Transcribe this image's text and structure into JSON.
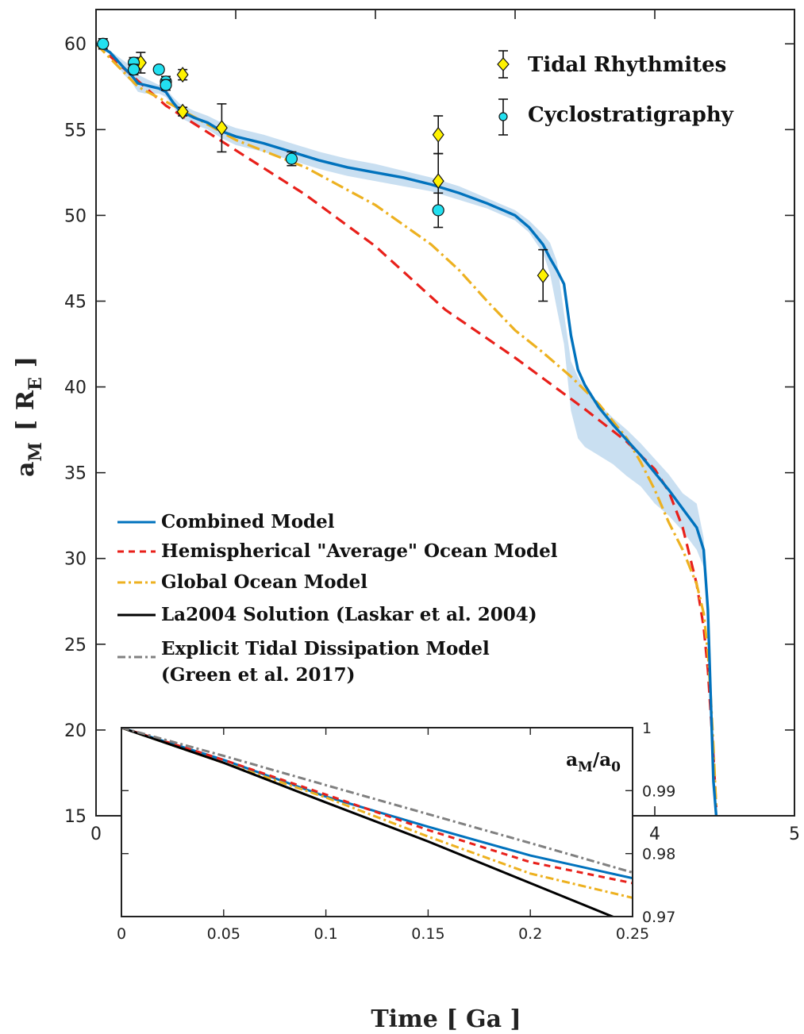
{
  "chart_data": [
    {
      "type": "line",
      "xlabel": "Time [ Ga ]",
      "ylabel_main": "a",
      "ylabel_sub": "M",
      "ylabel_bracket_open": "[",
      "ylabel_unit_main": "R",
      "ylabel_unit_sub": "E",
      "ylabel_bracket_close": "]",
      "xlim": [
        0,
        5
      ],
      "ylim": [
        15,
        62
      ],
      "xticks": [
        "0",
        "1",
        "2",
        "3",
        "4",
        "5"
      ],
      "yticks": [
        "15",
        "20",
        "25",
        "30",
        "35",
        "40",
        "45",
        "50",
        "55",
        "60"
      ],
      "legend_lines": [
        {
          "label": "Combined Model",
          "color": "#0072BD",
          "style": "solid"
        },
        {
          "label": "Hemispherical \"Average\" Ocean Model",
          "color": "#E8201A",
          "style": "dashed"
        },
        {
          "label": "Global Ocean Model",
          "color": "#EDB120",
          "style": "dashdot"
        },
        {
          "label": "La2004 Solution (Laskar et al. 2004)",
          "color": "#000000",
          "style": "solid"
        },
        {
          "label": "Explicit Tidal Dissipation Model",
          "label2": "(Green et al. 2017)",
          "color": "#808080",
          "style": "dashdot"
        }
      ],
      "legend_markers": [
        {
          "label": "Tidal Rhythmites",
          "marker": "diamond",
          "color": "#FFF200"
        },
        {
          "label": "Cyclostratigraphy",
          "marker": "circle",
          "color": "#22E0F0"
        }
      ],
      "series": [
        {
          "name": "Combined Model",
          "x": [
            0,
            0.1,
            0.2,
            0.25,
            0.3,
            0.35,
            0.4,
            0.45,
            0.5,
            0.55,
            0.6,
            0.7,
            0.8,
            0.9,
            1.0,
            1.2,
            1.4,
            1.6,
            1.8,
            2.0,
            2.2,
            2.4,
            2.6,
            2.8,
            3.0,
            3.1,
            3.2,
            3.25,
            3.3,
            3.35,
            3.4,
            3.45,
            3.5,
            3.6,
            3.7,
            3.8,
            3.9,
            4.0,
            4.1,
            4.2,
            4.3,
            4.35,
            4.38,
            4.4,
            4.42,
            4.44
          ],
          "y": [
            60,
            59.5,
            58.6,
            58.2,
            57.7,
            57.6,
            57.5,
            57.4,
            57.2,
            56.6,
            56.1,
            55.7,
            55.4,
            54.9,
            54.6,
            54.2,
            53.7,
            53.2,
            52.8,
            52.5,
            52.2,
            51.8,
            51.3,
            50.7,
            50.0,
            49.3,
            48.3,
            47.5,
            46.8,
            46.0,
            43.0,
            41.0,
            40.1,
            38.8,
            37.8,
            36.9,
            36.0,
            35.0,
            34.0,
            32.9,
            31.8,
            30.5,
            27.0,
            22.0,
            17.0,
            15.0
          ],
          "band_upper": [
            60,
            59.6,
            59.0,
            58.7,
            58.2,
            58.0,
            57.8,
            57.6,
            57.4,
            56.9,
            56.5,
            56.1,
            55.8,
            55.4,
            55.1,
            54.7,
            54.2,
            53.7,
            53.3,
            53.0,
            52.6,
            52.2,
            51.7,
            51.0,
            50.3,
            49.7,
            48.9,
            48.4,
            47.3,
            44.3,
            41.5,
            40.6,
            39.9,
            39.0,
            38.2,
            37.5,
            36.7,
            35.8,
            34.9,
            33.8,
            33.2,
            31.2,
            27.5,
            22.5,
            17.5,
            15.0
          ],
          "band_lower": [
            60,
            59.4,
            58.2,
            57.8,
            57.2,
            57.1,
            57.1,
            57.1,
            56.9,
            56.4,
            55.7,
            55.3,
            55.0,
            54.5,
            54.1,
            53.7,
            53.2,
            52.7,
            52.3,
            52.0,
            51.7,
            51.4,
            50.9,
            50.4,
            49.7,
            49.0,
            47.8,
            46.6,
            44.5,
            42.5,
            38.6,
            37.0,
            36.5,
            36.0,
            35.5,
            34.8,
            34.2,
            33.2,
            32.5,
            31.6,
            30.5,
            29.5,
            26.5,
            21.5,
            16.5,
            15.0
          ],
          "color": "#0072BD"
        },
        {
          "name": "Hemispherical \"Average\" Ocean Model",
          "x": [
            0,
            0.5,
            1.0,
            1.5,
            2.0,
            2.5,
            3.0,
            3.5,
            3.8,
            4.0,
            4.1,
            4.2,
            4.3,
            4.35,
            4.38,
            4.4,
            4.42,
            4.44
          ],
          "y": [
            60,
            56.4,
            53.8,
            51.2,
            48.2,
            44.5,
            41.7,
            38.7,
            36.8,
            35.2,
            33.9,
            31.8,
            28.5,
            26.0,
            23.5,
            21.0,
            18.5,
            15.5
          ],
          "color": "#E8201A"
        },
        {
          "name": "Global Ocean Model",
          "x": [
            0,
            0.3,
            0.6,
            1.0,
            1.5,
            2.0,
            2.4,
            2.6,
            2.8,
            3.0,
            3.2,
            3.4,
            3.6,
            3.8,
            3.9,
            4.0,
            4.1,
            4.2,
            4.3,
            4.35,
            4.38,
            4.4,
            4.42,
            4.44
          ],
          "y": [
            60,
            57.5,
            56.2,
            54.4,
            52.8,
            50.6,
            48.3,
            46.8,
            45.0,
            43.3,
            42.0,
            40.6,
            39.0,
            37.0,
            35.6,
            34.0,
            32.1,
            30.5,
            28.5,
            26.8,
            24.5,
            22.0,
            19.0,
            15.5
          ],
          "color": "#EDB120"
        }
      ],
      "tidal_rhythmites": [
        {
          "x": 0.32,
          "y": 58.9,
          "err": 0.6
        },
        {
          "x": 0.62,
          "y": 58.2,
          "err": 0.3
        },
        {
          "x": 0.62,
          "y": 56.05,
          "err": 0.25
        },
        {
          "x": 0.9,
          "y": 55.1,
          "err": 1.4
        },
        {
          "x": 2.45,
          "y": 54.7,
          "err": 1.1
        },
        {
          "x": 2.45,
          "y": 52.0,
          "err": 1.6
        },
        {
          "x": 3.2,
          "y": 46.5,
          "err": 1.5
        }
      ],
      "cyclostratigraphy": [
        {
          "x": 0.05,
          "y": 60.0,
          "err": 0.3
        },
        {
          "x": 0.27,
          "y": 58.9,
          "err": 0.3
        },
        {
          "x": 0.27,
          "y": 58.5,
          "err": 0.3
        },
        {
          "x": 0.45,
          "y": 58.5,
          "err": 0.2
        },
        {
          "x": 0.5,
          "y": 57.8,
          "err": 0.3
        },
        {
          "x": 0.5,
          "y": 57.6,
          "err": 0.3
        },
        {
          "x": 1.4,
          "y": 53.3,
          "err": 0.4
        },
        {
          "x": 2.45,
          "y": 50.3,
          "err": 1.0
        }
      ]
    },
    {
      "type": "line",
      "title_main": "a",
      "title_sub": "M",
      "title_sep": "/a",
      "title_sub2": "0",
      "xlim": [
        0,
        0.25
      ],
      "ylim": [
        0.97,
        1.0
      ],
      "xticks": [
        "0",
        "0.05",
        "0.1",
        "0.15",
        "0.2",
        "0.25"
      ],
      "yticks": [
        "0.97",
        "0.98",
        "0.99",
        "1"
      ],
      "series": [
        {
          "name": "Combined Model",
          "color": "#0072BD",
          "x": [
            0,
            0.05,
            0.1,
            0.15,
            0.2,
            0.25
          ],
          "y": [
            1.0,
            0.99488,
            0.98906,
            0.98427,
            0.97969,
            0.97609
          ]
        },
        {
          "name": "Hemispherical \"Average\" Ocean Model",
          "color": "#E8201A",
          "x": [
            0,
            0.05,
            0.1,
            0.15,
            0.2,
            0.25
          ],
          "y": [
            1.0,
            0.99488,
            0.98938,
            0.98375,
            0.97865,
            0.97531
          ]
        },
        {
          "name": "Global Ocean Model",
          "color": "#EDB120",
          "x": [
            0,
            0.05,
            0.1,
            0.15,
            0.2,
            0.25
          ],
          "y": [
            1.0,
            0.99443,
            0.98891,
            0.98271,
            0.97683,
            0.97297
          ]
        },
        {
          "name": "La2004 Solution (Laskar et al. 2004)",
          "color": "#000000",
          "x": [
            0,
            0.05,
            0.1,
            0.15,
            0.2,
            0.25
          ],
          "y": [
            1.0,
            0.99443,
            0.98813,
            0.98193,
            0.97531,
            0.9687
          ]
        },
        {
          "name": "Explicit Tidal Dissipation Model",
          "color": "#808080",
          "x": [
            0,
            0.05,
            0.1,
            0.15,
            0.2,
            0.25
          ],
          "y": [
            1.0,
            0.99553,
            0.99088,
            0.98627,
            0.98167,
            0.977
          ]
        }
      ]
    }
  ]
}
